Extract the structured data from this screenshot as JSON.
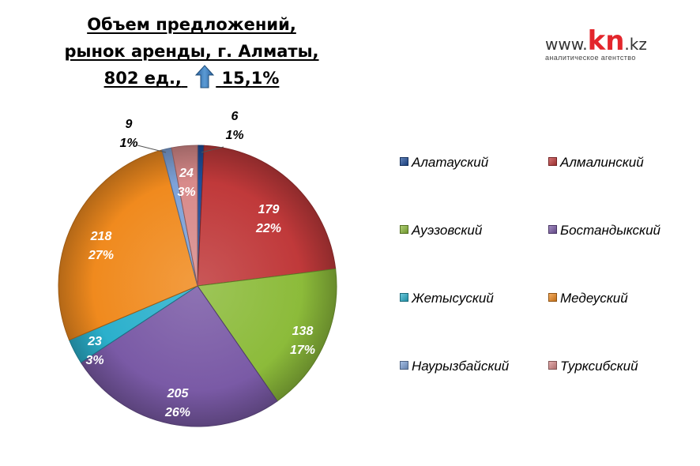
{
  "title": {
    "line1": "Объем предложений,",
    "line2": "рынок аренды, г. Алматы,",
    "line3_prefix": "802 ед.,",
    "line3_suffix": "15,1%",
    "arrow_icon": "up-arrow-icon"
  },
  "logo": {
    "prefix": "www.",
    "brand": "kn",
    "suffix": ".kz",
    "tagline": "аналитическое агентство"
  },
  "chart_data": {
    "type": "pie",
    "total": 802,
    "slices": [
      {
        "name": "Алатауский",
        "value": 6,
        "percent": "1%",
        "color": "#1f4e9a"
      },
      {
        "name": "Алмалинский",
        "value": 179,
        "percent": "22%",
        "color": "#c0393a"
      },
      {
        "name": "Ауэзовский",
        "value": 138,
        "percent": "17%",
        "color": "#8cbb3a"
      },
      {
        "name": "Бостандыкский",
        "value": 205,
        "percent": "26%",
        "color": "#7a5aa6"
      },
      {
        "name": "Жетысуский",
        "value": 23,
        "percent": "3%",
        "color": "#2bb0cc"
      },
      {
        "name": "Медеуский",
        "value": 218,
        "percent": "27%",
        "color": "#f08a1e"
      },
      {
        "name": "Наурызбайский",
        "value": 9,
        "percent": "1%",
        "color": "#7ea2d8"
      },
      {
        "name": "Турксибский",
        "value": 24,
        "percent": "3%",
        "color": "#d88a8a"
      }
    ],
    "legend_position": "right"
  }
}
